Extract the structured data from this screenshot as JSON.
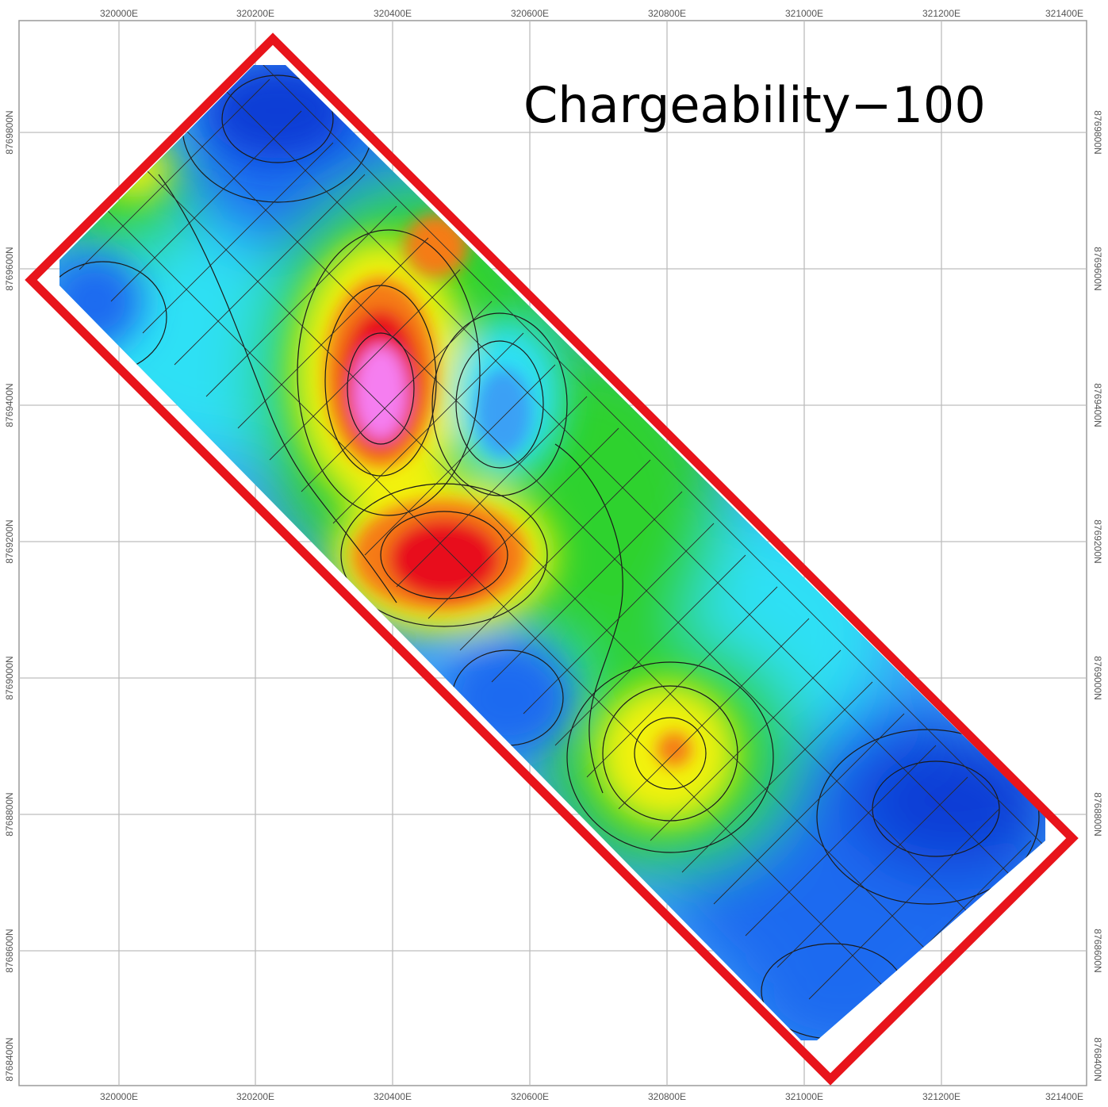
{
  "title": "Chargeability−100",
  "axes": {
    "x_ticks": [
      "320000E",
      "320200E",
      "320400E",
      "320600E",
      "320800E",
      "321000E",
      "321200E",
      "321400E"
    ],
    "y_ticks": [
      "8769800N",
      "8769600N",
      "8769400N",
      "8769200N",
      "8769000N",
      "8768800N",
      "8768600N",
      "8768400N"
    ]
  },
  "colors": {
    "outline": "#e8141b",
    "grid": "#bdbdbd",
    "frame": "#9a9a9a",
    "palette": {
      "dark_blue": "#0a3dd6",
      "blue": "#1f6bf0",
      "light_blue": "#3aa0f5",
      "cyan": "#2fe0f5",
      "green": "#2fd22f",
      "yellow": "#f2f20c",
      "orange": "#f57c12",
      "red": "#e8101e",
      "magenta": "#f57ef0"
    }
  },
  "anomalies": [
    {
      "id": "high-1",
      "level": "magenta"
    },
    {
      "id": "high-2",
      "level": "red"
    },
    {
      "id": "high-3",
      "level": "yellow"
    },
    {
      "id": "low-1",
      "level": "dark_blue"
    },
    {
      "id": "low-2",
      "level": "cyan"
    }
  ]
}
